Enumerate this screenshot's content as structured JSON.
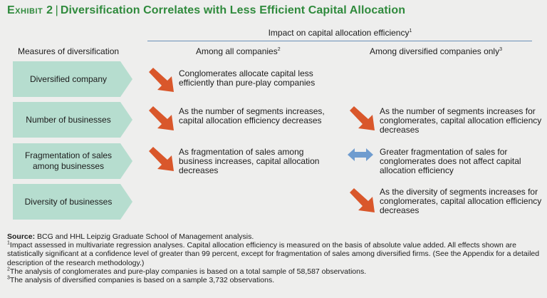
{
  "header": {
    "exhibit": "Exhibit 2",
    "title": "Diversification Correlates with Less Efficient Capital Allocation"
  },
  "impact_header": {
    "text": "Impact on capital allocation efficiency",
    "note": "1"
  },
  "columns": {
    "measures": "Measures of diversification",
    "all": {
      "text": "Among all companies",
      "note": "2"
    },
    "diversified": {
      "text": "Among diversified companies only",
      "note": "3"
    }
  },
  "rows": [
    {
      "measure": "Diversified company",
      "all": {
        "icon": "down-arrow-icon",
        "text": "Conglomerates allocate capital less efficiently than pure-play companies"
      },
      "diversified": {
        "icon": "",
        "text": ""
      }
    },
    {
      "measure": "Number of businesses",
      "all": {
        "icon": "down-arrow-icon",
        "text": "As the number of segments increases, capital allocation efficiency decreases"
      },
      "diversified": {
        "icon": "down-arrow-icon",
        "text": "As the number of segments increases for conglomerates, capital allocation efficiency decreases"
      }
    },
    {
      "measure": "Fragmentation of sales among businesses",
      "all": {
        "icon": "down-arrow-icon",
        "text": "As fragmentation of sales among business increases, capital allocation decreases"
      },
      "diversified": {
        "icon": "double-arrow-icon",
        "text": "Greater fragmentation of sales for conglomerates does not affect capital allocation efficiency"
      }
    },
    {
      "measure": "Diversity of businesses",
      "all": {
        "icon": "",
        "text": ""
      },
      "diversified": {
        "icon": "down-arrow-icon",
        "text": "As the diversity of segments increases for conglomerates, capital allocation efficiency decreases"
      }
    }
  ],
  "footnotes": {
    "source_label": "Source:",
    "source_text": "BCG and HHL Leipzig Graduate School of Management analysis.",
    "note1_mark": "1",
    "note1": "Impact assessed in multivariate regression analyses. Capital allocation efficiency is measured on the basis of absolute value added. All effects shown are statistically significant at a confidence level of greater than 99 percent, except for fragmentation of sales among diversified firms. (See the Appendix for a detailed description of the research methodology.)",
    "note2_mark": "2",
    "note2": "The analysis of conglomerates and pure-play companies is based on a total sample of 58,587 observations.",
    "note3_mark": "3",
    "note3": "The analysis of diversified companies is based on a sample 3,732 observations."
  },
  "colors": {
    "title": "#2f8a3c",
    "chevron": "#b6ddcf",
    "down_arrow": "#d9572b",
    "neutral_arrow": "#6f9ccf",
    "rule": "#6a8fb8"
  }
}
